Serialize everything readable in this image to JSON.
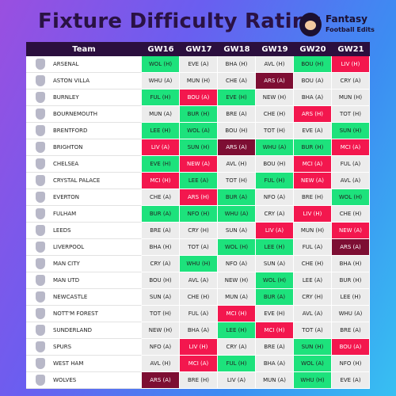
{
  "header": {
    "title": "Fixture Difficulty Rating",
    "logo_line1": "Fantasy",
    "logo_line2": "Football Edits"
  },
  "table": {
    "columns": [
      "Team",
      "GW16",
      "GW17",
      "GW18",
      "GW19",
      "GW20",
      "GW21"
    ],
    "rows": [
      {
        "team": "ARSENAL",
        "fixtures": [
          {
            "text": "WOL (H)",
            "color": "#1de27c"
          },
          {
            "text": "EVE (A)",
            "color": "#ececec"
          },
          {
            "text": "BHA (H)",
            "color": "#ececec"
          },
          {
            "text": "AVL (H)",
            "color": "#ececec"
          },
          {
            "text": "BOU (H)",
            "color": "#1de27c"
          },
          {
            "text": "LIV (H)",
            "color": "#f3174e"
          }
        ]
      },
      {
        "team": "ASTON VILLA",
        "fixtures": [
          {
            "text": "WHU (A)",
            "color": "#ececec"
          },
          {
            "text": "MUN (H)",
            "color": "#ececec"
          },
          {
            "text": "CHE (A)",
            "color": "#ececec"
          },
          {
            "text": "ARS (A)",
            "color": "#7d0e33"
          },
          {
            "text": "BOU (A)",
            "color": "#ececec"
          },
          {
            "text": "CRY (A)",
            "color": "#ececec"
          }
        ]
      },
      {
        "team": "BURNLEY",
        "fixtures": [
          {
            "text": "FUL (H)",
            "color": "#1de27c"
          },
          {
            "text": "BOU (A)",
            "color": "#f3174e"
          },
          {
            "text": "EVE (H)",
            "color": "#1de27c"
          },
          {
            "text": "NEW (H)",
            "color": "#ececec"
          },
          {
            "text": "BHA (A)",
            "color": "#ececec"
          },
          {
            "text": "MUN (H)",
            "color": "#ececec"
          }
        ]
      },
      {
        "team": "BOURNEMOUTH",
        "fixtures": [
          {
            "text": "MUN (A)",
            "color": "#ececec"
          },
          {
            "text": "BUR (H)",
            "color": "#1de27c"
          },
          {
            "text": "BRE (A)",
            "color": "#ececec"
          },
          {
            "text": "CHE (H)",
            "color": "#ececec"
          },
          {
            "text": "ARS (H)",
            "color": "#f3174e"
          },
          {
            "text": "TOT (H)",
            "color": "#ececec"
          }
        ]
      },
      {
        "team": "BRENTFORD",
        "fixtures": [
          {
            "text": "LEE (H)",
            "color": "#1de27c"
          },
          {
            "text": "WOL (A)",
            "color": "#1de27c"
          },
          {
            "text": "BOU (H)",
            "color": "#ececec"
          },
          {
            "text": "TOT (H)",
            "color": "#ececec"
          },
          {
            "text": "EVE (A)",
            "color": "#ececec"
          },
          {
            "text": "SUN (H)",
            "color": "#1de27c"
          }
        ]
      },
      {
        "team": "BRIGHTON",
        "fixtures": [
          {
            "text": "LIV (A)",
            "color": "#f3174e"
          },
          {
            "text": "SUN (H)",
            "color": "#1de27c"
          },
          {
            "text": "ARS (A)",
            "color": "#7d0e33"
          },
          {
            "text": "WHU (A)",
            "color": "#1de27c"
          },
          {
            "text": "BUR (H)",
            "color": "#1de27c"
          },
          {
            "text": "MCI (A)",
            "color": "#f3174e"
          }
        ]
      },
      {
        "team": "CHELSEA",
        "fixtures": [
          {
            "text": "EVE (H)",
            "color": "#1de27c"
          },
          {
            "text": "NEW (A)",
            "color": "#f3174e"
          },
          {
            "text": "AVL (H)",
            "color": "#ececec"
          },
          {
            "text": "BOU (H)",
            "color": "#ececec"
          },
          {
            "text": "MCI (A)",
            "color": "#f3174e"
          },
          {
            "text": "FUL (A)",
            "color": "#ececec"
          }
        ]
      },
      {
        "team": "CRYSTAL PALACE",
        "fixtures": [
          {
            "text": "MCI (H)",
            "color": "#f3174e"
          },
          {
            "text": "LEE (A)",
            "color": "#1de27c"
          },
          {
            "text": "TOT (H)",
            "color": "#ececec"
          },
          {
            "text": "FUL (H)",
            "color": "#1de27c"
          },
          {
            "text": "NEW (A)",
            "color": "#f3174e"
          },
          {
            "text": "AVL (A)",
            "color": "#ececec"
          }
        ]
      },
      {
        "team": "EVERTON",
        "fixtures": [
          {
            "text": "CHE (A)",
            "color": "#ececec"
          },
          {
            "text": "ARS (H)",
            "color": "#f3174e"
          },
          {
            "text": "BUR (A)",
            "color": "#1de27c"
          },
          {
            "text": "NFO (A)",
            "color": "#ececec"
          },
          {
            "text": "BRE (H)",
            "color": "#ececec"
          },
          {
            "text": "WOL (H)",
            "color": "#1de27c"
          }
        ]
      },
      {
        "team": "FULHAM",
        "fixtures": [
          {
            "text": "BUR (A)",
            "color": "#1de27c"
          },
          {
            "text": "NFO (H)",
            "color": "#1de27c"
          },
          {
            "text": "WHU (A)",
            "color": "#1de27c"
          },
          {
            "text": "CRY (A)",
            "color": "#ececec"
          },
          {
            "text": "LIV (H)",
            "color": "#f3174e"
          },
          {
            "text": "CHE (H)",
            "color": "#ececec"
          }
        ]
      },
      {
        "team": "LEEDS",
        "fixtures": [
          {
            "text": "BRE (A)",
            "color": "#ececec"
          },
          {
            "text": "CRY (H)",
            "color": "#ececec"
          },
          {
            "text": "SUN (A)",
            "color": "#ececec"
          },
          {
            "text": "LIV (A)",
            "color": "#f3174e"
          },
          {
            "text": "MUN (H)",
            "color": "#ececec"
          },
          {
            "text": "NEW (A)",
            "color": "#f3174e"
          }
        ]
      },
      {
        "team": "LIVERPOOL",
        "fixtures": [
          {
            "text": "BHA (H)",
            "color": "#ececec"
          },
          {
            "text": "TOT (A)",
            "color": "#ececec"
          },
          {
            "text": "WOL (H)",
            "color": "#1de27c"
          },
          {
            "text": "LEE (H)",
            "color": "#1de27c"
          },
          {
            "text": "FUL (A)",
            "color": "#ececec"
          },
          {
            "text": "ARS (A)",
            "color": "#7d0e33"
          }
        ]
      },
      {
        "team": "MAN CITY",
        "fixtures": [
          {
            "text": "CRY (A)",
            "color": "#ececec"
          },
          {
            "text": "WHU (H)",
            "color": "#1de27c"
          },
          {
            "text": "NFO (A)",
            "color": "#ececec"
          },
          {
            "text": "SUN (A)",
            "color": "#ececec"
          },
          {
            "text": "CHE (H)",
            "color": "#ececec"
          },
          {
            "text": "BHA (H)",
            "color": "#ececec"
          }
        ]
      },
      {
        "team": "MAN UTD",
        "fixtures": [
          {
            "text": "BOU (H)",
            "color": "#ececec"
          },
          {
            "text": "AVL (A)",
            "color": "#ececec"
          },
          {
            "text": "NEW (H)",
            "color": "#ececec"
          },
          {
            "text": "WOL (H)",
            "color": "#1de27c"
          },
          {
            "text": "LEE (A)",
            "color": "#ececec"
          },
          {
            "text": "BUR (H)",
            "color": "#ececec"
          }
        ]
      },
      {
        "team": "NEWCASTLE",
        "fixtures": [
          {
            "text": "SUN (A)",
            "color": "#ececec"
          },
          {
            "text": "CHE (H)",
            "color": "#ececec"
          },
          {
            "text": "MUN (A)",
            "color": "#ececec"
          },
          {
            "text": "BUR (A)",
            "color": "#1de27c"
          },
          {
            "text": "CRY (H)",
            "color": "#ececec"
          },
          {
            "text": "LEE (H)",
            "color": "#ececec"
          }
        ]
      },
      {
        "team": "NOTT'M FOREST",
        "fixtures": [
          {
            "text": "TOT (H)",
            "color": "#ececec"
          },
          {
            "text": "FUL (A)",
            "color": "#ececec"
          },
          {
            "text": "MCI (H)",
            "color": "#f3174e"
          },
          {
            "text": "EVE (H)",
            "color": "#ececec"
          },
          {
            "text": "AVL (A)",
            "color": "#ececec"
          },
          {
            "text": "WHU (A)",
            "color": "#ececec"
          }
        ]
      },
      {
        "team": "SUNDERLAND",
        "fixtures": [
          {
            "text": "NEW (H)",
            "color": "#ececec"
          },
          {
            "text": "BHA (A)",
            "color": "#ececec"
          },
          {
            "text": "LEE (H)",
            "color": "#1de27c"
          },
          {
            "text": "MCI (H)",
            "color": "#f3174e"
          },
          {
            "text": "TOT (A)",
            "color": "#ececec"
          },
          {
            "text": "BRE (A)",
            "color": "#ececec"
          }
        ]
      },
      {
        "team": "SPURS",
        "fixtures": [
          {
            "text": "NFO (A)",
            "color": "#ececec"
          },
          {
            "text": "LIV (H)",
            "color": "#f3174e"
          },
          {
            "text": "CRY (A)",
            "color": "#ececec"
          },
          {
            "text": "BRE (A)",
            "color": "#ececec"
          },
          {
            "text": "SUN (H)",
            "color": "#1de27c"
          },
          {
            "text": "BOU (A)",
            "color": "#f3174e"
          }
        ]
      },
      {
        "team": "WEST HAM",
        "fixtures": [
          {
            "text": "AVL (H)",
            "color": "#ececec"
          },
          {
            "text": "MCI (A)",
            "color": "#f3174e"
          },
          {
            "text": "FUL (H)",
            "color": "#1de27c"
          },
          {
            "text": "BHA (A)",
            "color": "#ececec"
          },
          {
            "text": "WOL (A)",
            "color": "#1de27c"
          },
          {
            "text": "NFO (H)",
            "color": "#ececec"
          }
        ]
      },
      {
        "team": "WOLVES",
        "fixtures": [
          {
            "text": "ARS (A)",
            "color": "#7d0e33"
          },
          {
            "text": "BRE (H)",
            "color": "#ececec"
          },
          {
            "text": "LIV (A)",
            "color": "#ececec"
          },
          {
            "text": "MUN (A)",
            "color": "#ececec"
          },
          {
            "text": "WHU (H)",
            "color": "#1de27c"
          },
          {
            "text": "EVE (A)",
            "color": "#ececec"
          }
        ]
      }
    ]
  }
}
